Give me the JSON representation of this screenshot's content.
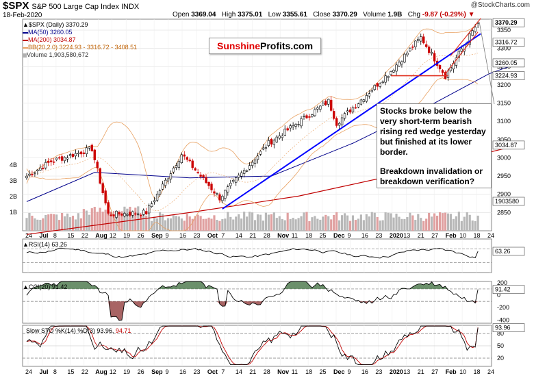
{
  "header": {
    "symbol": "$SPX",
    "name": "S&P 500 Large Cap Index",
    "exchange": "INDX",
    "date": "18-Feb-2020",
    "brand": "@StockCharts.com",
    "open_label": "Open",
    "open": "3369.04",
    "high_label": "High",
    "high": "3375.01",
    "low_label": "Low",
    "low": "3355.61",
    "close_label": "Close",
    "close": "3370.29",
    "volume_label": "Volume",
    "volume": "1.9B",
    "chg_label": "Chg",
    "chg": "-9.87 (-0.29%)",
    "chg_marker": "▼"
  },
  "legend": {
    "price": "▲$SPX (Daily) 3370.29",
    "ma50": "MA(50) 3260.05",
    "ma200": "MA(200) 3034.87",
    "bb": "BB(20,2.0) 3224.93 - 3316.72 - 3408.51",
    "volume": "Volume 1,903,580,672",
    "rsi": "▲RSI(14) 63.26",
    "cci": "▲CCI(20) 91.42",
    "sto_main": "Slow STO %K(14) %D(3) 93.96,",
    "sto_d": "94.71"
  },
  "logo": {
    "part1": "Sunshine",
    "part2": "Profits.com"
  },
  "annotation": {
    "line1": "Stocks broke below the very short-term bearish rising red wedge yesterday but finished at its lower border.",
    "line2": "Breakdown invalidation or breakdown verification?"
  },
  "colors": {
    "up": "#ffffff",
    "down": "#cc0000",
    "ma50": "#00008b",
    "ma200": "#c00000",
    "bb": "#e8a060",
    "trend": "#0000ff",
    "volume": "#b0b0b0",
    "osc_fill": "#3a6b3a",
    "osc_neg": "#8b3030"
  },
  "chart_data": [
    {
      "type": "candlestick",
      "title": "$SPX S&P 500 Large Cap Index INDX",
      "ylim": [
        2800,
        3380
      ],
      "y_ticks": [
        2850,
        2900,
        2950,
        3000,
        3050,
        3100,
        3150,
        3200,
        3250,
        3300,
        3350
      ],
      "right_labels": [
        "3370.29",
        "3316.72",
        "3260.05",
        "3224.93",
        "3034.87",
        "1903580"
      ],
      "volume_ticks": [
        "1B",
        "2B",
        "3B",
        "4B"
      ],
      "x_labels": [
        "24",
        "Jul",
        "8",
        "15",
        "22",
        "Aug",
        "12",
        "19",
        "26",
        "Sep",
        "9",
        "16",
        "23",
        "Oct",
        "7",
        "14",
        "21",
        "28",
        "Nov",
        "11",
        "18",
        "25",
        "Dec",
        "9",
        "16",
        "23",
        "2020",
        "13",
        "21",
        "27",
        "Feb",
        "10",
        "18",
        "24"
      ],
      "x_labels_bold": [
        "Jul",
        "Aug",
        "Sep",
        "Oct",
        "Nov",
        "Dec",
        "2020",
        "Feb"
      ],
      "monthly_anchors": [
        {
          "date": "2019-06-21",
          "close": 2950
        },
        {
          "date": "2019-07-05",
          "close": 2990
        },
        {
          "date": "2019-07-26",
          "close": 3025
        },
        {
          "date": "2019-08-05",
          "close": 2845
        },
        {
          "date": "2019-08-23",
          "close": 2850
        },
        {
          "date": "2019-09-12",
          "close": 3010
        },
        {
          "date": "2019-10-02",
          "close": 2890
        },
        {
          "date": "2019-10-28",
          "close": 3040
        },
        {
          "date": "2019-11-27",
          "close": 3155
        },
        {
          "date": "2019-12-03",
          "close": 3095
        },
        {
          "date": "2019-12-31",
          "close": 3230
        },
        {
          "date": "2020-01-17",
          "close": 3330
        },
        {
          "date": "2020-01-31",
          "close": 3225
        },
        {
          "date": "2020-02-18",
          "close": 3370
        }
      ],
      "ma50_anchors": [
        [
          0,
          2880
        ],
        [
          25,
          2960
        ],
        [
          60,
          2945
        ],
        [
          90,
          2950
        ],
        [
          120,
          3040
        ],
        [
          150,
          3150
        ],
        [
          170,
          3230
        ],
        [
          181,
          3260
        ]
      ],
      "ma200_anchors": [
        [
          0,
          2790
        ],
        [
          60,
          2850
        ],
        [
          100,
          2895
        ],
        [
          140,
          2960
        ],
        [
          181,
          3035
        ]
      ],
      "trendlines": [
        {
          "name": "rising support",
          "from": [
            "2019-10-03",
            2860
          ],
          "to": [
            "2020-02-19",
            3340
          ]
        },
        {
          "name": "support level",
          "from": [
            "2020-01-02",
            3225
          ],
          "to": [
            "2020-02-03",
            3225
          ]
        }
      ]
    },
    {
      "type": "line",
      "name": "RSI(14)",
      "last": 63.26,
      "ylim": [
        0,
        100
      ],
      "levels": [
        30,
        70
      ]
    },
    {
      "type": "line",
      "name": "CCI(20)",
      "last": 91.42,
      "ylim": [
        -450,
        220
      ],
      "y_ticks": [
        -400,
        -200,
        0,
        200
      ],
      "levels": [
        -100,
        100
      ]
    },
    {
      "type": "line",
      "name": "Slow STO %K(14) %D(3)",
      "k_last": 93.96,
      "d_last": 94.71,
      "ylim": [
        0,
        100
      ],
      "y_ticks": [
        20,
        50,
        80
      ],
      "levels": [
        20,
        80
      ]
    }
  ]
}
